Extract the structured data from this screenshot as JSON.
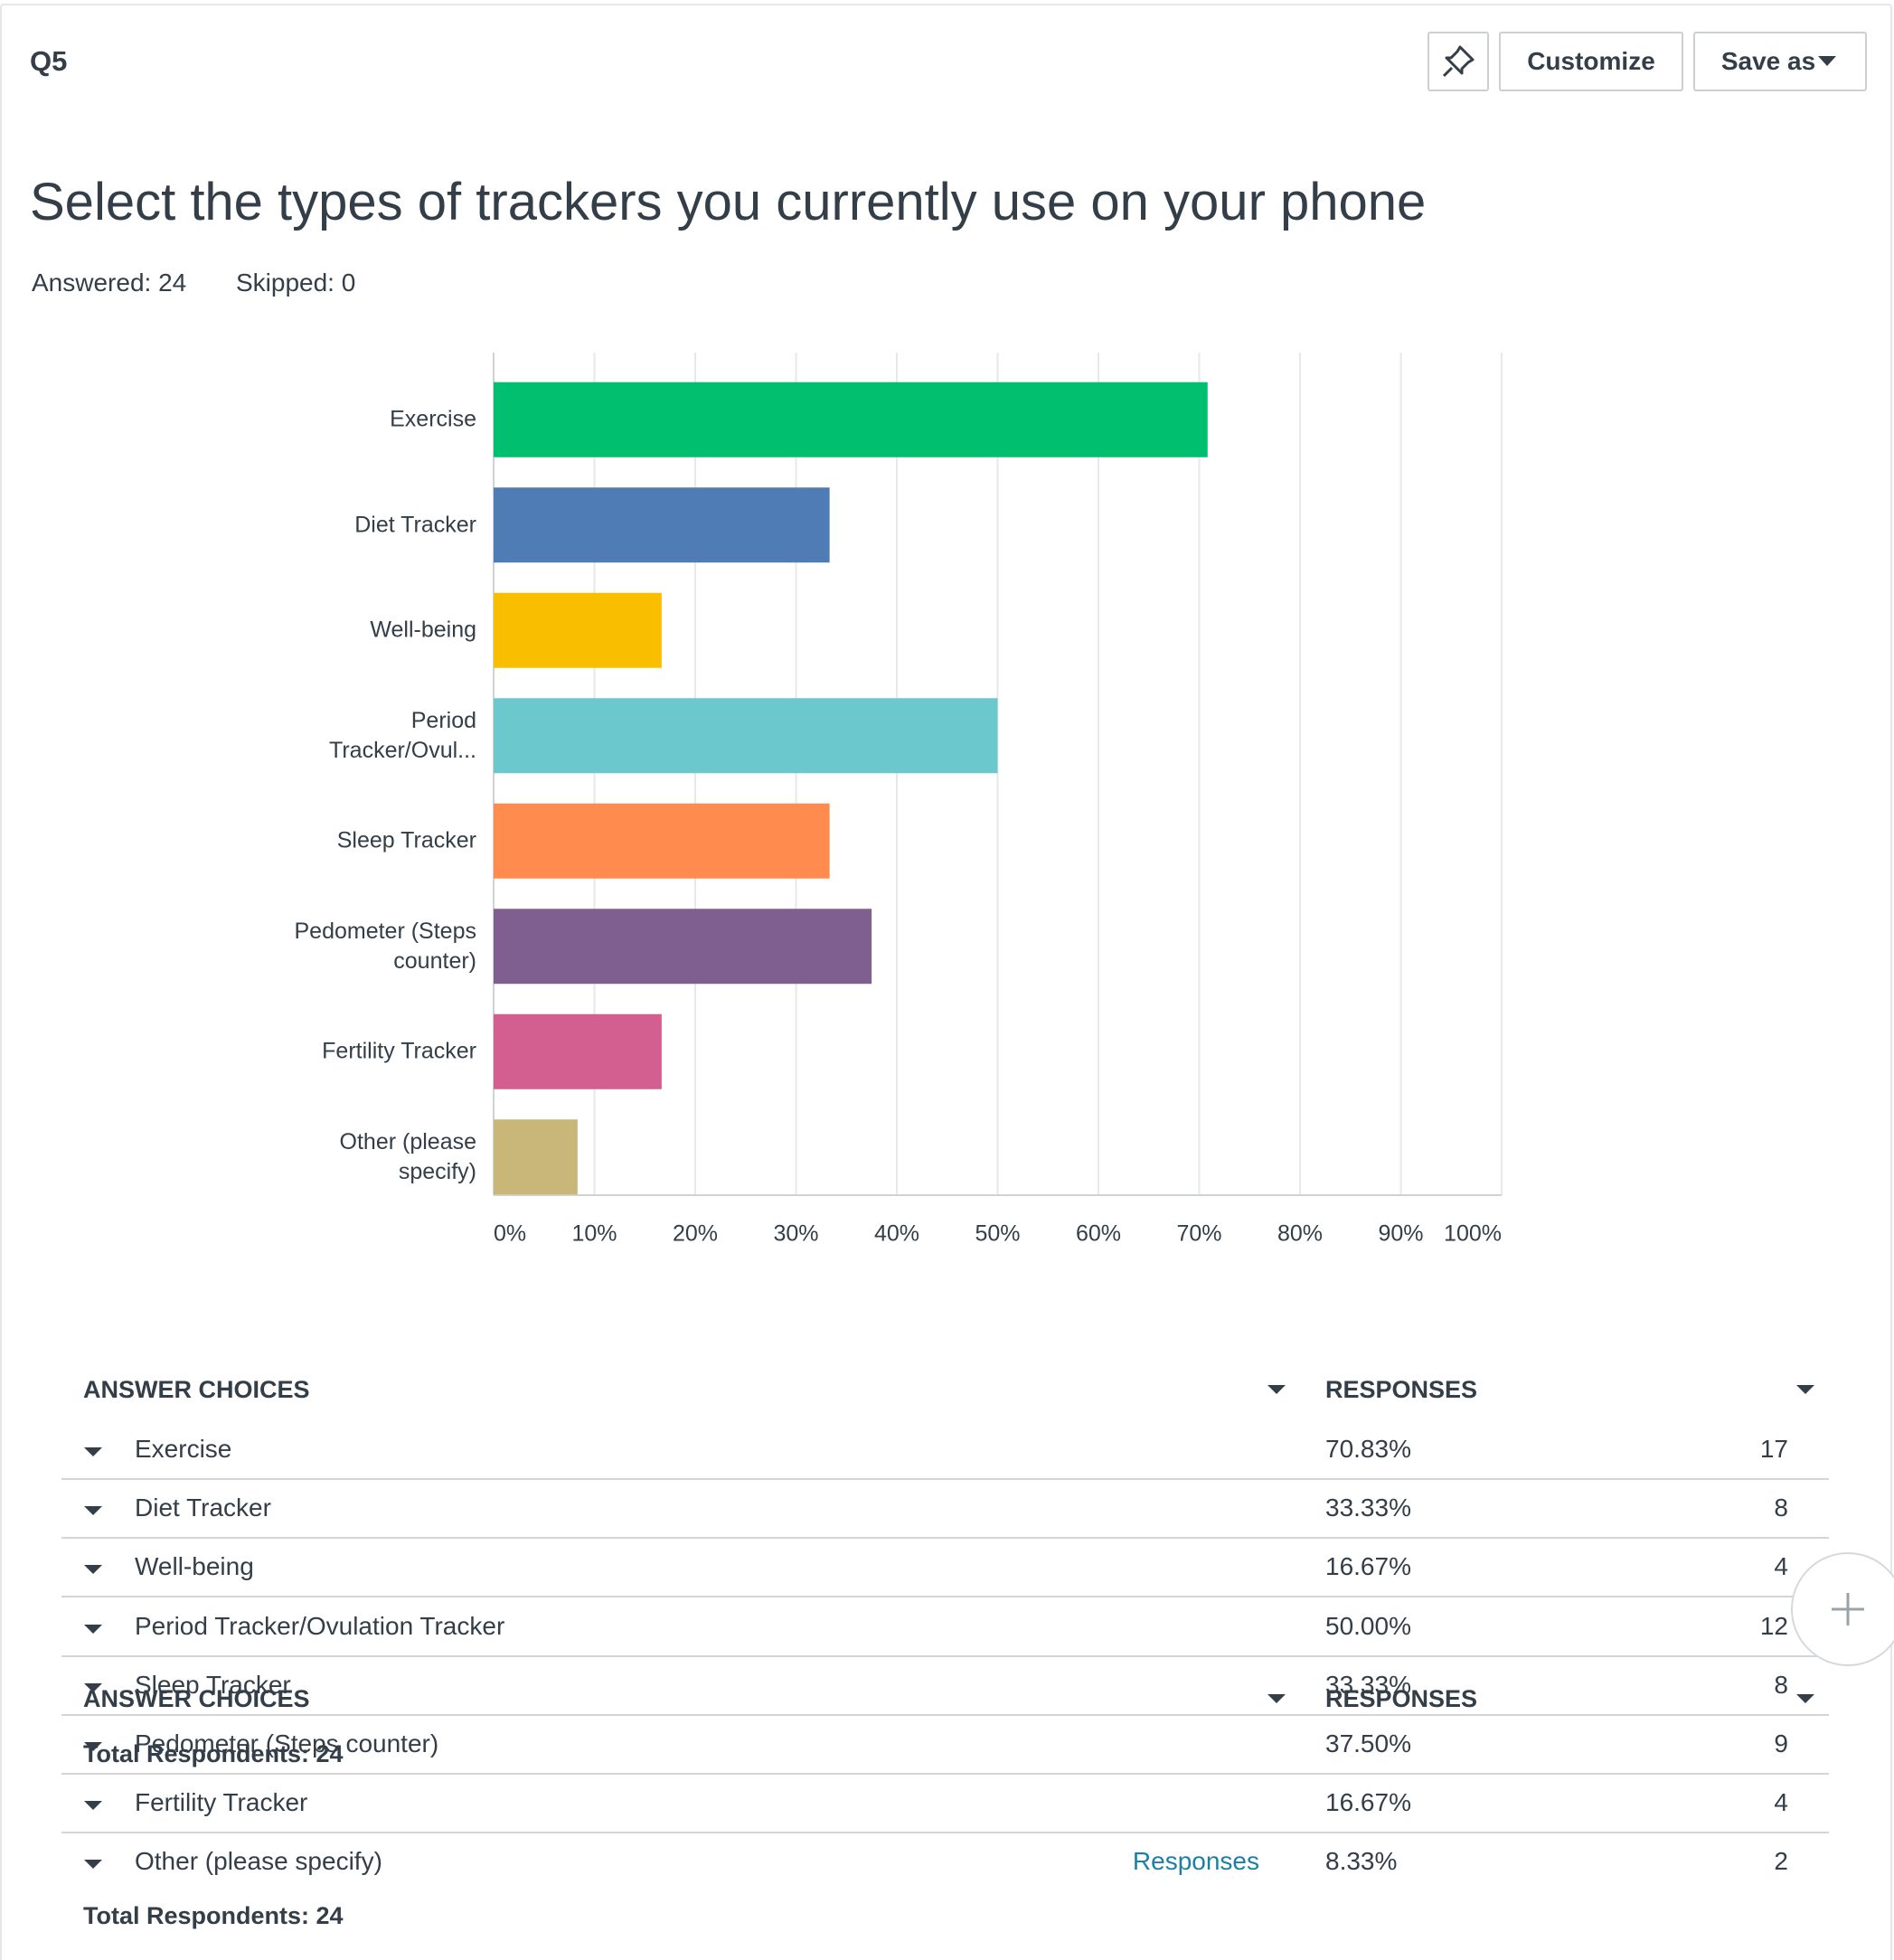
{
  "header": {
    "question": "Q5",
    "customize": "Customize",
    "save_as": "Save as",
    "title": "Select the types of trackers you currently use on your phone",
    "answered": "Answered: 24",
    "skipped": "Skipped: 0"
  },
  "chart_data": {
    "type": "bar",
    "orientation": "horizontal",
    "categories": [
      "Exercise",
      "Diet Tracker",
      "Well-being",
      "Period Tracker/Ovul...",
      "Sleep Tracker",
      "Pedometer (Steps counter)",
      "Fertility Tracker",
      "Other (please specify)"
    ],
    "values": [
      70.83,
      33.33,
      16.67,
      50.0,
      33.33,
      37.5,
      16.67,
      8.33
    ],
    "colors": [
      "#00bf6f",
      "#507cb6",
      "#f9be00",
      "#6bc8cd",
      "#ff8b4f",
      "#7f5f8f",
      "#d25f90",
      "#c9b77a"
    ],
    "xlim": [
      0,
      100
    ],
    "xticks": [
      {
        "value": 0,
        "label": "0%"
      },
      {
        "value": 10,
        "label": "10%"
      },
      {
        "value": 20,
        "label": "20%"
      },
      {
        "value": 30,
        "label": "30%"
      },
      {
        "value": 40,
        "label": "40%"
      },
      {
        "value": 50,
        "label": "50%"
      },
      {
        "value": 60,
        "label": "60%"
      },
      {
        "value": 70,
        "label": "70%"
      },
      {
        "value": 80,
        "label": "80%"
      },
      {
        "value": 90,
        "label": "90%"
      },
      {
        "value": 100,
        "label": "100%"
      }
    ],
    "grid": true
  },
  "table": {
    "headers": [
      "ANSWER CHOICES",
      "RESPONSES"
    ],
    "rows": [
      [
        "Exercise",
        "70.83%",
        17
      ],
      [
        "Diet Tracker",
        "33.33%",
        8
      ],
      [
        "Well-being",
        "16.67%",
        4
      ],
      [
        "Period Tracker/Ovulation Tracker",
        "50.00%",
        12
      ],
      [
        "Sleep Tracker",
        "33.33%",
        8
      ],
      [
        "Pedometer (Steps counter)",
        "37.50%",
        9
      ],
      [
        "Fertility Tracker",
        "16.67%",
        4
      ],
      [
        "Other (please specify)",
        "8.33%",
        2
      ]
    ],
    "link": "Responses",
    "total": "Total Respondents: 24"
  },
  "sticky_header": {
    "headers": [
      "ANSWER CHOICES",
      "RESPONSES"
    ],
    "total": "Total Respondents: 24"
  }
}
